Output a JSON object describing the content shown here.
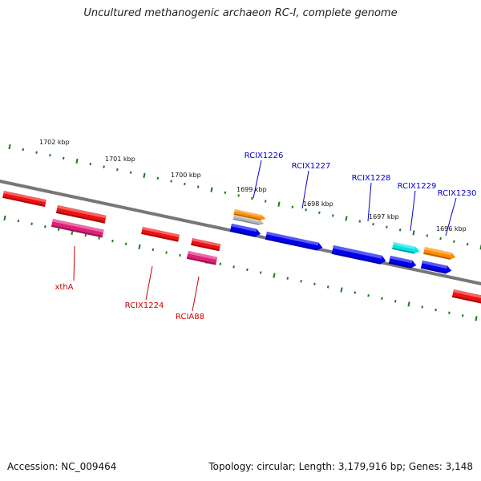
{
  "title": "Uncultured methanogenic archaeon RC-I, complete genome",
  "footer": {
    "accession": "Accession: NC_009464",
    "summary": "Topology: circular; Length: 3,179,916 bp; Genes: 3,148"
  },
  "colors": {
    "backbone": "#777777",
    "tick": "#1a7a1a",
    "forward_label": "#0000cc",
    "reverse_label": "#cc0000"
  },
  "ruler_labels": [
    "1702 kbp",
    "1701 kbp",
    "1700 kbp",
    "1699 kbp",
    "1698 kbp",
    "1697 kbp",
    "1696 kbp"
  ],
  "genes": [
    {
      "name": "",
      "strand": "reverse",
      "color": "#ee1111"
    },
    {
      "name": "",
      "strand": "reverse",
      "color": "#ee1111"
    },
    {
      "name": "xthA",
      "strand": "reverse",
      "color": "#e0207a"
    },
    {
      "name": "RCIX1224",
      "strand": "reverse",
      "color": "#ee1111"
    },
    {
      "name": "",
      "strand": "reverse",
      "color": "#ee1111"
    },
    {
      "name": "RCIA88",
      "strand": "reverse",
      "color": "#e0207a"
    },
    {
      "name": "RCIX1226",
      "strand": "forward",
      "color": "#ff8c00"
    },
    {
      "name": "",
      "strand": "forward",
      "color": "#b4b4b4"
    },
    {
      "name": "",
      "strand": "forward",
      "color": "#0000ee"
    },
    {
      "name": "RCIX1227",
      "strand": "forward",
      "color": "#0000ee"
    },
    {
      "name": "RCIX1228",
      "strand": "forward",
      "color": "#0000ee"
    },
    {
      "name": "RCIX1229",
      "strand": "forward",
      "color": "#00e5e5"
    },
    {
      "name": "",
      "strand": "forward",
      "color": "#0000ee"
    },
    {
      "name": "RCIX1230",
      "strand": "forward",
      "color": "#ff8c00"
    },
    {
      "name": "",
      "strand": "forward",
      "color": "#0000ee"
    },
    {
      "name": "",
      "strand": "reverse",
      "color": "#ee1111"
    }
  ]
}
